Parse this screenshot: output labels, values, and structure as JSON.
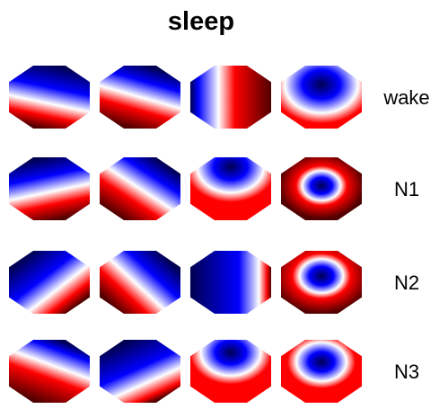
{
  "title": "sleep",
  "colors": {
    "negative": "#0000ff",
    "neutral": "#ffffff",
    "positive": "#ff0000",
    "extreme_negative": "#000050",
    "extreme_positive": "#500000"
  },
  "rows": [
    {
      "label": "wake",
      "maps": [
        {
          "pattern": "linear",
          "angle": -15,
          "offset": 0.1
        },
        {
          "pattern": "linear",
          "angle": -20,
          "offset": 0.0
        },
        {
          "pattern": "linear",
          "angle": 90,
          "offset": -0.15
        },
        {
          "pattern": "radial",
          "cy": 0.3,
          "scale": 1.1
        }
      ]
    },
    {
      "label": "N1",
      "maps": [
        {
          "pattern": "linear",
          "angle": 15,
          "offset": 0.05
        },
        {
          "pattern": "linear",
          "angle": -40,
          "offset": 0.0
        },
        {
          "pattern": "radial",
          "cy": 0.15,
          "scale": 1.0
        },
        {
          "pattern": "ring",
          "cy": 0.45,
          "scale": 0.7
        }
      ]
    },
    {
      "label": "N2",
      "maps": [
        {
          "pattern": "linear",
          "angle": 45,
          "offset": 0.15
        },
        {
          "pattern": "linear",
          "angle": -50,
          "offset": 0.05
        },
        {
          "pattern": "linear",
          "angle": 90,
          "offset": 0.35
        },
        {
          "pattern": "ring",
          "cy": 0.4,
          "scale": 0.8
        }
      ]
    },
    {
      "label": "N3",
      "maps": [
        {
          "pattern": "linear",
          "angle": -25,
          "offset": -0.1
        },
        {
          "pattern": "linear",
          "angle": 30,
          "offset": 0.2
        },
        {
          "pattern": "radial",
          "cy": 0.2,
          "scale": 0.9
        },
        {
          "pattern": "radial",
          "cy": 0.35,
          "scale": 0.75
        }
      ]
    }
  ]
}
